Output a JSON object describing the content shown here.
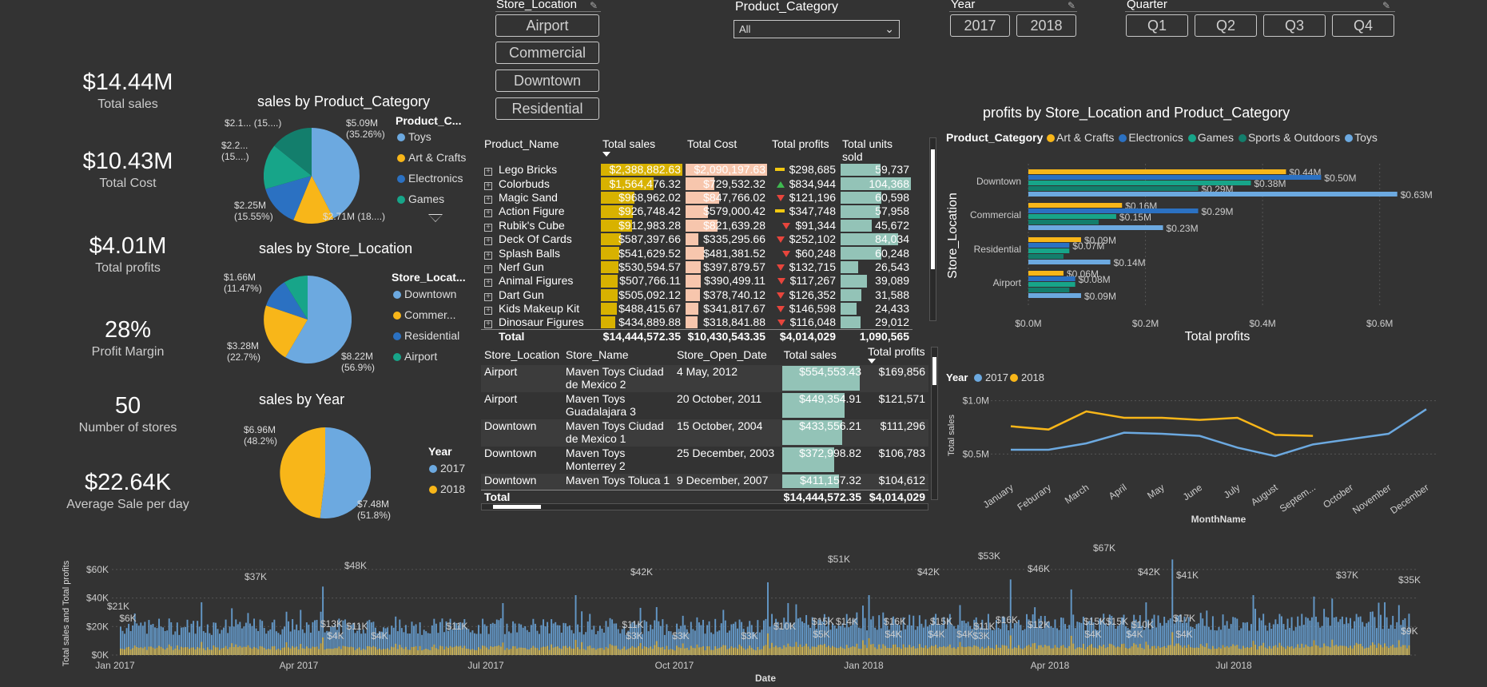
{
  "kpis": [
    {
      "value": "$14.44M",
      "label": "Total sales"
    },
    {
      "value": "$10.43M",
      "label": "Total Cost"
    },
    {
      "value": "$4.01M",
      "label": "Total profits"
    },
    {
      "value": "28%",
      "label": "Profit Margin"
    },
    {
      "value": "50",
      "label": "Number of stores"
    },
    {
      "value": "$22.64K",
      "label": "Average Sale per day"
    }
  ],
  "slicers": {
    "store_location": {
      "title": "Store_Location",
      "options": [
        "Airport",
        "Commercial",
        "Downtown",
        "Residential"
      ]
    },
    "product_category": {
      "title": "Product_Category",
      "selected": "All"
    },
    "year": {
      "title": "Year",
      "options": [
        "2017",
        "2018"
      ]
    },
    "quarter": {
      "title": "Quarter",
      "options": [
        "Q1",
        "Q2",
        "Q3",
        "Q4"
      ]
    }
  },
  "colors": {
    "blue": "#6ca9e0",
    "yellow": "#f8b619",
    "darkblue": "#2b71c2",
    "teal": "#17a589",
    "darkteal": "#137e6c",
    "sales_bar": "#d8b200",
    "cost_bar": "#f7c6ad",
    "units_bar": "#93c3b7"
  },
  "pie_category": {
    "title": "sales by Product_Category",
    "legend_title": "Product_C...",
    "legend": [
      "Toys",
      "Art & Crafts",
      "Electronics",
      "Games"
    ],
    "labels": [
      "$5.09M\n(35.26%)",
      "$2.71M (18....)",
      "$2.25M\n(15.55%)",
      "$2.2...\n(15....)",
      "$2.1... (15....)"
    ]
  },
  "pie_location": {
    "title": "sales by Store_Location",
    "legend_title": "Store_Locat...",
    "legend": [
      "Downtown",
      "Commer...",
      "Residential",
      "Airport"
    ],
    "labels": [
      "$8.22M\n(56.9%)",
      "$3.28M\n(22.7%)",
      "$1.66M\n(11.47%)"
    ]
  },
  "pie_year": {
    "title": "sales by Year",
    "legend_title": "Year",
    "legend": [
      "2017",
      "2018"
    ],
    "labels": [
      "$7.48M\n(51.8%)",
      "$6.96M\n(48.2%)"
    ]
  },
  "product_table": {
    "headers": [
      "Product_Name",
      "Total sales",
      "Total Cost",
      "Total profits",
      "Total units sold"
    ],
    "rows": [
      {
        "name": "Lego Bricks",
        "sales": "$2,388,882.63",
        "cost": "$2,090,197.63",
        "profits": "$298,685",
        "units": "59,737",
        "ind": "flat",
        "sf": 1.0,
        "cf": 1.0,
        "uf": 0.57
      },
      {
        "name": "Colorbuds",
        "sales": "$1,564,476.32",
        "cost": "$729,532.32",
        "profits": "$834,944",
        "units": "104,368",
        "ind": "up",
        "sf": 0.65,
        "cf": 0.35,
        "uf": 1.0
      },
      {
        "name": "Magic Sand",
        "sales": "$968,962.02",
        "cost": "$847,766.02",
        "profits": "$121,196",
        "units": "60,598",
        "ind": "down",
        "sf": 0.41,
        "cf": 0.41,
        "uf": 0.58
      },
      {
        "name": "Action Figure",
        "sales": "$926,748.42",
        "cost": "$579,000.42",
        "profits": "$347,748",
        "units": "57,958",
        "ind": "flat",
        "sf": 0.39,
        "cf": 0.28,
        "uf": 0.56
      },
      {
        "name": "Rubik's Cube",
        "sales": "$912,983.28",
        "cost": "$821,639.28",
        "profits": "$91,344",
        "units": "45,672",
        "ind": "down",
        "sf": 0.38,
        "cf": 0.39,
        "uf": 0.44
      },
      {
        "name": "Deck Of Cards",
        "sales": "$587,397.66",
        "cost": "$335,295.66",
        "profits": "$252,102",
        "units": "84,034",
        "ind": "down",
        "sf": 0.25,
        "cf": 0.16,
        "uf": 0.81
      },
      {
        "name": "Splash Balls",
        "sales": "$541,629.52",
        "cost": "$481,381.52",
        "profits": "$60,248",
        "units": "60,248",
        "ind": "down",
        "sf": 0.23,
        "cf": 0.23,
        "uf": 0.58
      },
      {
        "name": "Nerf Gun",
        "sales": "$530,594.57",
        "cost": "$397,879.57",
        "profits": "$132,715",
        "units": "26,543",
        "ind": "down",
        "sf": 0.22,
        "cf": 0.19,
        "uf": 0.25
      },
      {
        "name": "Animal Figures",
        "sales": "$507,766.11",
        "cost": "$390,499.11",
        "profits": "$117,267",
        "units": "39,089",
        "ind": "down",
        "sf": 0.21,
        "cf": 0.19,
        "uf": 0.37
      },
      {
        "name": "Dart Gun",
        "sales": "$505,092.12",
        "cost": "$378,740.12",
        "profits": "$126,352",
        "units": "31,588",
        "ind": "down",
        "sf": 0.21,
        "cf": 0.18,
        "uf": 0.3
      },
      {
        "name": "Kids Makeup Kit",
        "sales": "$488,415.67",
        "cost": "$341,817.67",
        "profits": "$146,598",
        "units": "24,433",
        "ind": "down",
        "sf": 0.2,
        "cf": 0.16,
        "uf": 0.23
      },
      {
        "name": "Dinosaur Figures",
        "sales": "$434,889.88",
        "cost": "$318,841.88",
        "profits": "$116,048",
        "units": "29,012",
        "ind": "down",
        "sf": 0.18,
        "cf": 0.15,
        "uf": 0.28
      }
    ],
    "total": {
      "label": "Total",
      "sales": "$14,444,572.35",
      "cost": "$10,430,543.35",
      "profits": "$4,014,029",
      "units": "1,090,565"
    }
  },
  "store_table": {
    "headers": [
      "Store_Location",
      "Store_Name",
      "Store_Open_Date",
      "Total sales",
      "Total profits"
    ],
    "rows": [
      {
        "loc": "Airport",
        "name": "Maven Toys Ciudad de Mexico 2",
        "date": "4 May, 2012",
        "sales": "$554,553.43",
        "profits": "$169,856",
        "sf": 1.0
      },
      {
        "loc": "Airport",
        "name": "Maven Toys Guadalajara 3",
        "date": "20 October, 2011",
        "sales": "$449,354.91",
        "profits": "$121,571",
        "sf": 0.81
      },
      {
        "loc": "Downtown",
        "name": "Maven Toys Ciudad de Mexico 1",
        "date": "15 October, 2004",
        "sales": "$433,556.21",
        "profits": "$111,296",
        "sf": 0.78
      },
      {
        "loc": "Downtown",
        "name": "Maven Toys Monterrey 2",
        "date": "25 December, 2003",
        "sales": "$372,998.82",
        "profits": "$106,783",
        "sf": 0.67
      },
      {
        "loc": "Downtown",
        "name": "Maven Toys Toluca 1",
        "date": "9 December, 2007",
        "sales": "$411,157.32",
        "profits": "$104,612",
        "sf": 0.74
      }
    ],
    "total": {
      "label": "Total",
      "sales": "$14,444,572.35",
      "profits": "$4,014,029"
    }
  },
  "chart_data": [
    {
      "type": "bar",
      "orientation": "horizontal",
      "title": "profits by Store_Location and Product_Category",
      "legend_title": "Product_Category",
      "xlabel": "Total profits",
      "ylabel": "Store_Location",
      "xlim": [
        0,
        0.7
      ],
      "xticks": [
        "$0.0M",
        "$0.2M",
        "$0.4M",
        "$0.6M"
      ],
      "categories": [
        "Downtown",
        "Commercial",
        "Residential",
        "Airport"
      ],
      "series": [
        {
          "name": "Art & Crafts",
          "color": "#f8b619",
          "values": [
            0.44,
            0.16,
            0.09,
            0.06
          ],
          "labels": [
            "$0.44M",
            "$0.16M",
            "$0.09M",
            "$0.06M"
          ]
        },
        {
          "name": "Electronics",
          "color": "#2b71c2",
          "values": [
            0.5,
            0.29,
            0.07,
            0.08
          ],
          "labels": [
            "$0.50M",
            "$0.29M",
            "$0.07M",
            "$0.08M"
          ]
        },
        {
          "name": "Games",
          "color": "#17a589",
          "values": [
            0.38,
            0.15,
            0.07,
            0.08
          ],
          "labels": [
            "$0.38M",
            "$0.15M",
            "",
            ""
          ]
        },
        {
          "name": "Sports & Outdoors",
          "color": "#137e6c",
          "values": [
            0.29,
            0.12,
            0.06,
            0.07
          ],
          "labels": [
            "$0.29M",
            "",
            "",
            ""
          ]
        },
        {
          "name": "Toys",
          "color": "#6ca9e0",
          "values": [
            0.63,
            0.23,
            0.14,
            0.09
          ],
          "labels": [
            "$0.63M",
            "$0.23M",
            "$0.14M",
            "$0.09M"
          ]
        }
      ]
    },
    {
      "type": "line",
      "legend_title": "Year",
      "xlabel": "MonthName",
      "ylabel": "Total sales",
      "yticks": [
        "$1.0M",
        "$0.5M"
      ],
      "ylim": [
        0.3,
        1.05
      ],
      "categories": [
        "January",
        "Feburary",
        "March",
        "April",
        "May",
        "June",
        "July",
        "August",
        "Septem...",
        "October",
        "November",
        "December"
      ],
      "series": [
        {
          "name": "2017",
          "color": "#6ca9e0",
          "values": [
            0.54,
            0.54,
            0.6,
            0.7,
            0.69,
            0.67,
            0.56,
            0.48,
            0.59,
            0.64,
            0.69,
            0.92
          ]
        },
        {
          "name": "2018",
          "color": "#f8b619",
          "values": [
            0.76,
            0.73,
            0.9,
            0.84,
            0.84,
            0.82,
            0.84,
            0.68,
            0.67,
            null,
            null,
            null
          ]
        }
      ]
    },
    {
      "type": "bar",
      "title": "",
      "xlabel": "Date",
      "ylabel": "Total sales and Total profits",
      "yticks": [
        "$0K",
        "$20K",
        "$40K",
        "$60K"
      ],
      "ylim": [
        0,
        70
      ],
      "xticks": [
        "Jan 2017",
        "Apr 2017",
        "Jul 2017",
        "Oct 2017",
        "Jan 2018",
        "Apr 2018",
        "Jul 2018"
      ],
      "peak_labels": [
        "$21K",
        "$6K",
        "$37K",
        "$48K",
        "$13K",
        "$11K",
        "$4K",
        "$4K",
        "$11K",
        "$42K",
        "$11K",
        "$3K",
        "$3K",
        "$3K",
        "$10K",
        "$51K",
        "$15K",
        "$5K",
        "$14K",
        "$16K",
        "$4K",
        "$42K",
        "$15K",
        "$4K",
        "$4K",
        "$53K",
        "$11K",
        "$3K",
        "$16K",
        "$46K",
        "$12K",
        "$67K",
        "$15K",
        "$15K",
        "$4K",
        "$42K",
        "$10K",
        "$4K",
        "$41K",
        "$17K",
        "$4K",
        "$37K",
        "$35K",
        "$9K"
      ],
      "series": [
        {
          "name": "Total sales",
          "color": "#6ca9e0",
          "summary": "daily sales between ~$12K and $67K"
        },
        {
          "name": "Total profits",
          "color": "#c9b057",
          "summary": "daily profits between ~$3K and $17K"
        }
      ]
    }
  ]
}
